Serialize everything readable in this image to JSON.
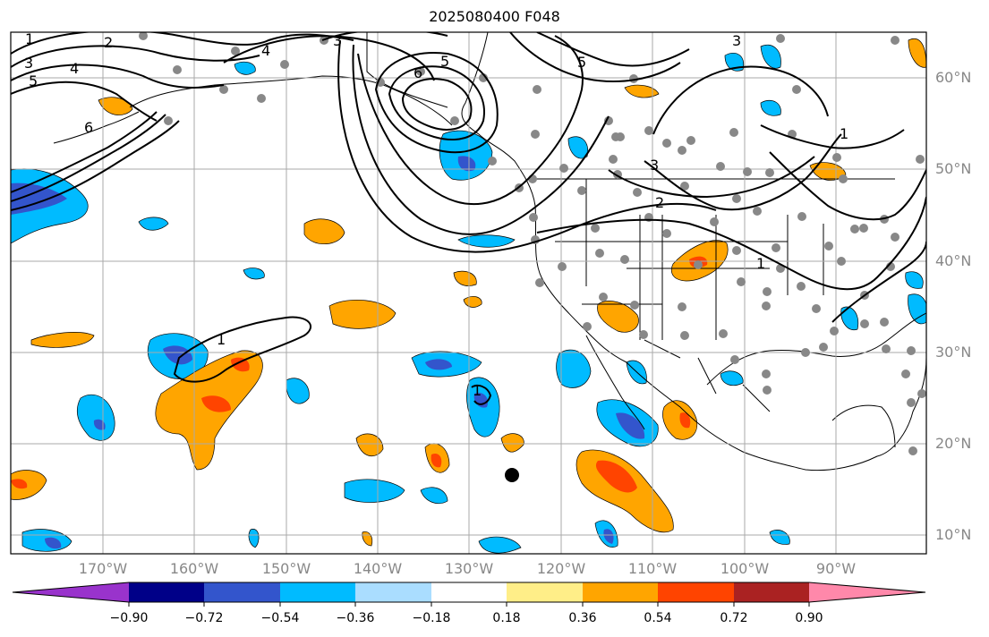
{
  "title": "2025080400 F048",
  "lat_labels": [
    "60°N",
    "50°N",
    "40°N",
    "30°N",
    "20°N",
    "10°N"
  ],
  "lon_labels": [
    "170°W",
    "160°W",
    "150°W",
    "140°W",
    "130°W",
    "120°W",
    "110°W",
    "100°W",
    "90°W"
  ],
  "contour_labels": [
    "1",
    "2",
    "3",
    "4",
    "5",
    "6",
    "3",
    "4",
    "5",
    "6",
    "5",
    "3",
    "3",
    "2",
    "1",
    "1",
    "1",
    "1"
  ],
  "colorbar": {
    "colors": [
      "#9933cc",
      "#000088",
      "#3355cc",
      "#00bbff",
      "#aaddff",
      "#ffffff",
      "#ffee88",
      "#ffa500",
      "#ff4400",
      "#aa2222",
      "#ff88aa"
    ],
    "tick_labels": [
      "−0.90",
      "−0.72",
      "−0.54",
      "−0.36",
      "−0.18",
      "0.18",
      "0.36",
      "0.54",
      "0.72",
      "0.90"
    ]
  },
  "colors": {
    "frame": "#000000",
    "grid": "#aaaaaa",
    "station_marker": "#888888",
    "storm_marker": "#000000"
  }
}
